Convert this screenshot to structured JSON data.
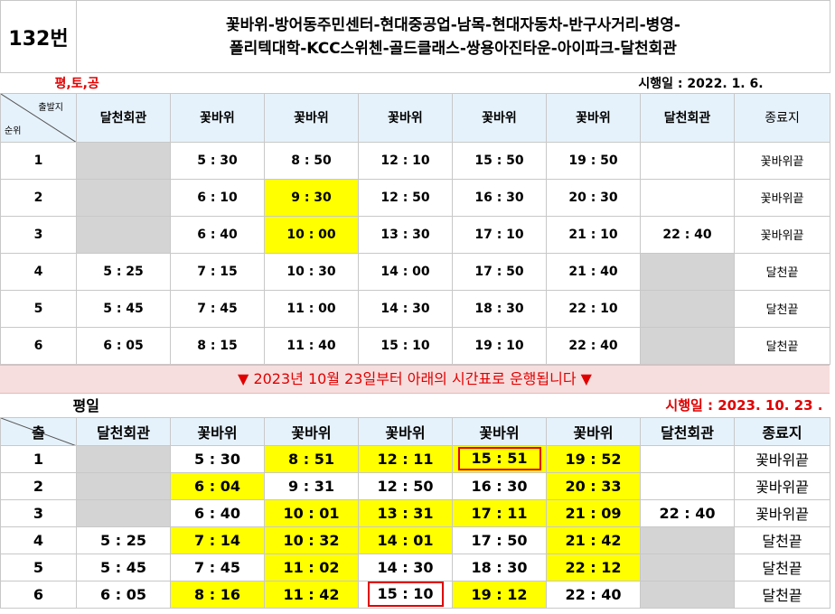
{
  "route_number": "132번",
  "route_description_line1": "꽃바위-방어동주민센터-현대중공업-남목-현대자동차-반구사거리-병영-",
  "route_description_line2": "폴리텍대학-KCC스위첸-골드클래스-쌍용아진타운-아이파크-달천회관",
  "table1": {
    "service_days": "평,토,공",
    "effective_date": "시행일 : 2022.    1.    6.",
    "corner_label_top": "출발지",
    "corner_label_bottom": "순위",
    "headers": [
      "달천회관",
      "꽃바위",
      "꽃바위",
      "꽃바위",
      "꽃바위",
      "꽃바위",
      "달천회관",
      "종료지"
    ],
    "rows": [
      {
        "no": "1",
        "cells": [
          "",
          "5 : 30",
          "8 : 50",
          "12 : 10",
          "15 : 50",
          "19 : 50",
          "",
          "꽃바위끝"
        ]
      },
      {
        "no": "2",
        "cells": [
          "",
          "6 : 10",
          "9 : 30",
          "12 : 50",
          "16 : 30",
          "20 : 30",
          "",
          "꽃바위끝"
        ]
      },
      {
        "no": "3",
        "cells": [
          "",
          "6 : 40",
          "10 : 00",
          "13 : 30",
          "17 : 10",
          "21 : 10",
          "22 : 40",
          "꽃바위끝"
        ]
      },
      {
        "no": "4",
        "cells": [
          "5 : 25",
          "7 : 15",
          "10 : 30",
          "14 : 00",
          "17 : 50",
          "21 : 40",
          "",
          "달천끝"
        ]
      },
      {
        "no": "5",
        "cells": [
          "5 : 45",
          "7 : 45",
          "11 : 00",
          "14 : 30",
          "18 : 30",
          "22 : 10",
          "",
          "달천끝"
        ]
      },
      {
        "no": "6",
        "cells": [
          "6 : 05",
          "8 : 15",
          "11 : 40",
          "15 : 10",
          "19 : 10",
          "22 : 40",
          "",
          "달천끝"
        ]
      }
    ]
  },
  "banner": "▼ 2023년 10월 23일부터 아래의 시간표로 운행됩니다 ▼",
  "table2": {
    "service_days": "평일",
    "effective_date": "시행일 : 2023.    10.    23 .",
    "corner_label": "출",
    "headers": [
      "달천회관",
      "꽃바위",
      "꽃바위",
      "꽃바위",
      "꽃바위",
      "꽃바위",
      "달천회관",
      "종료지"
    ],
    "rows": [
      {
        "no": "1",
        "cells": [
          "",
          "5 : 30",
          "8 : 51",
          "12 : 11",
          "15 : 51",
          "19 : 52",
          "",
          "꽃바위끝"
        ]
      },
      {
        "no": "2",
        "cells": [
          "",
          "6 : 04",
          "9 : 31",
          "12 : 50",
          "16 : 30",
          "20 : 33",
          "",
          "꽃바위끝"
        ]
      },
      {
        "no": "3",
        "cells": [
          "",
          "6 : 40",
          "10 : 01",
          "13 : 31",
          "17 : 11",
          "21 : 09",
          "22 : 40",
          "꽃바위끝"
        ]
      },
      {
        "no": "4",
        "cells": [
          "5 : 25",
          "7 : 14",
          "10 : 32",
          "14 : 01",
          "17 : 50",
          "21 : 42",
          "",
          "달천끝"
        ]
      },
      {
        "no": "5",
        "cells": [
          "5 : 45",
          "7 : 45",
          "11 : 02",
          "14 : 30",
          "18 : 30",
          "22 : 12",
          "",
          "달천끝"
        ]
      },
      {
        "no": "6",
        "cells": [
          "6 : 05",
          "8 : 16",
          "11 : 42",
          "15 : 10",
          "19 : 12",
          "22 : 40",
          "",
          "달천끝"
        ]
      }
    ]
  },
  "colors": {
    "highlight_yellow": "#ffff00",
    "unused_gray": "#d4d4d4",
    "accent_red": "#e00000",
    "banner_bg": "#f7dede"
  }
}
